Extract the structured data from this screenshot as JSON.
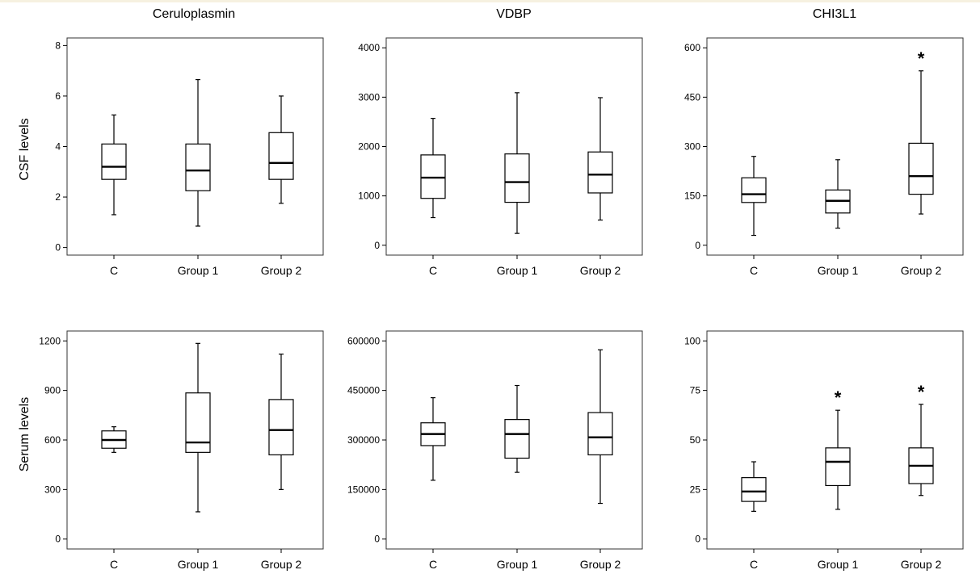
{
  "column_titles": [
    "Ceruloplasmin",
    "VDBP",
    "CHI3L1"
  ],
  "row_titles": [
    "CSF levels",
    "Serum levels"
  ],
  "chart_data": [
    {
      "type": "box",
      "title": "Ceruloplasmin",
      "ylabel": "CSF levels",
      "categories": [
        "C",
        "Group 1",
        "Group 2"
      ],
      "yticks": [
        "0",
        "2",
        "4",
        "6",
        "8"
      ],
      "ylim": [
        -0.3,
        8.3
      ],
      "boxes": [
        {
          "min": 1.3,
          "q1": 2.7,
          "median": 3.2,
          "q3": 4.1,
          "max": 5.25,
          "sig": ""
        },
        {
          "min": 0.85,
          "q1": 2.25,
          "median": 3.05,
          "q3": 4.1,
          "max": 6.65,
          "sig": ""
        },
        {
          "min": 1.75,
          "q1": 2.7,
          "median": 3.35,
          "q3": 4.55,
          "max": 6.0,
          "sig": ""
        }
      ]
    },
    {
      "type": "box",
      "title": "VDBP",
      "ylabel": "",
      "categories": [
        "C",
        "Group 1",
        "Group 2"
      ],
      "yticks": [
        "0",
        "1000",
        "2000",
        "3000",
        "4000"
      ],
      "ylim": [
        -200,
        4200
      ],
      "boxes": [
        {
          "min": 560,
          "q1": 950,
          "median": 1370,
          "q3": 1830,
          "max": 2570,
          "sig": ""
        },
        {
          "min": 240,
          "q1": 870,
          "median": 1280,
          "q3": 1850,
          "max": 3090,
          "sig": ""
        },
        {
          "min": 510,
          "q1": 1060,
          "median": 1430,
          "q3": 1890,
          "max": 2990,
          "sig": ""
        }
      ]
    },
    {
      "type": "box",
      "title": "CHI3L1",
      "ylabel": "",
      "categories": [
        "C",
        "Group 1",
        "Group 2"
      ],
      "yticks": [
        "0",
        "150",
        "300",
        "450",
        "600"
      ],
      "ylim": [
        -30,
        630
      ],
      "boxes": [
        {
          "min": 30,
          "q1": 130,
          "median": 155,
          "q3": 205,
          "max": 270,
          "sig": ""
        },
        {
          "min": 52,
          "q1": 98,
          "median": 135,
          "q3": 168,
          "max": 260,
          "sig": ""
        },
        {
          "min": 95,
          "q1": 155,
          "median": 210,
          "q3": 310,
          "max": 530,
          "sig": "*"
        }
      ]
    },
    {
      "type": "box",
      "title": "",
      "ylabel": "Serum levels",
      "categories": [
        "C",
        "Group 1",
        "Group 2"
      ],
      "yticks": [
        "0",
        "300",
        "600",
        "900",
        "1200"
      ],
      "ylim": [
        -60,
        1260
      ],
      "boxes": [
        {
          "min": 525,
          "q1": 550,
          "median": 600,
          "q3": 655,
          "max": 680,
          "sig": ""
        },
        {
          "min": 165,
          "q1": 525,
          "median": 585,
          "q3": 885,
          "max": 1185,
          "sig": ""
        },
        {
          "min": 300,
          "q1": 510,
          "median": 660,
          "q3": 845,
          "max": 1120,
          "sig": ""
        }
      ]
    },
    {
      "type": "box",
      "title": "",
      "ylabel": "",
      "categories": [
        "C",
        "Group 1",
        "Group 2"
      ],
      "yticks": [
        "0",
        "150000",
        "300000",
        "450000",
        "600000"
      ],
      "ylim": [
        -30000,
        630000
      ],
      "boxes": [
        {
          "min": 178000,
          "q1": 283000,
          "median": 318000,
          "q3": 352000,
          "max": 428000,
          "sig": ""
        },
        {
          "min": 202000,
          "q1": 245000,
          "median": 318000,
          "q3": 362000,
          "max": 465000,
          "sig": ""
        },
        {
          "min": 108000,
          "q1": 255000,
          "median": 308000,
          "q3": 383000,
          "max": 573000,
          "sig": ""
        }
      ]
    },
    {
      "type": "box",
      "title": "",
      "ylabel": "",
      "categories": [
        "C",
        "Group 1",
        "Group 2"
      ],
      "yticks": [
        "0",
        "25",
        "50",
        "75",
        "100"
      ],
      "ylim": [
        -5,
        105
      ],
      "boxes": [
        {
          "min": 14,
          "q1": 19,
          "median": 24,
          "q3": 31,
          "max": 39,
          "sig": ""
        },
        {
          "min": 15,
          "q1": 27,
          "median": 39,
          "q3": 46,
          "max": 65,
          "sig": "*"
        },
        {
          "min": 22,
          "q1": 28,
          "median": 37,
          "q3": 46,
          "max": 68,
          "sig": "*"
        }
      ]
    }
  ]
}
